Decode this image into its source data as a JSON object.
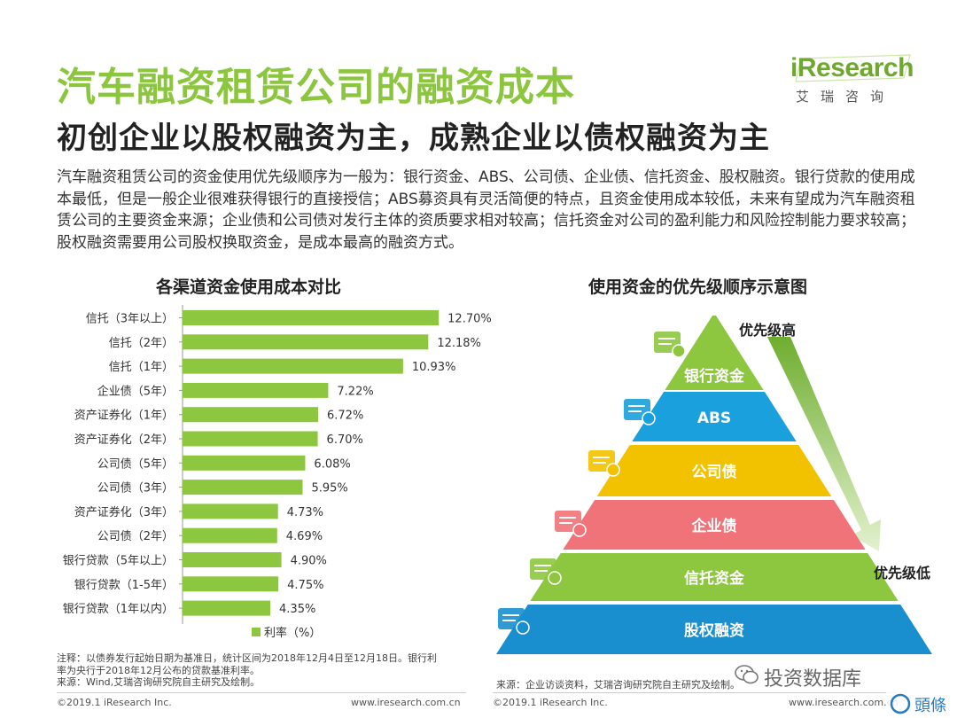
{
  "header": {
    "title": "汽车融资租赁公司的融资成本",
    "subtitle": "初创企业以股权融资为主，成熟企业以债权融资为主"
  },
  "logo": {
    "brand_i": "i",
    "brand_rest": "Research",
    "cn": "艾瑞咨询"
  },
  "intro": "汽车融资租赁公司的资金使用优先级顺序为一般为：银行资金、ABS、公司债、企业债、信托资金、股权融资。银行贷款的使用成本最低，但是一般企业很难获得银行的直接授信；ABS募资具有灵活简便的特点，且资金使用成本较低，未来有望成为汽车融资租赁公司的主要资金来源；企业债和公司债对发行主体的资质要求相对较高；信托资金对公司的盈利能力和风险控制能力要求较高；股权融资需要用公司股权换取资金，是成本最高的融资方式。",
  "left_chart_title": "各渠道资金使用成本对比",
  "right_chart_title": "使用资金的优先级顺序示意图",
  "chart_data": {
    "type": "bar",
    "orientation": "horizontal",
    "categories": [
      "信托（3年以上）",
      "信托（2年）",
      "信托（1年）",
      "企业债（5年）",
      "资产证券化（1年）",
      "资产证券化（2年）",
      "公司债（5年）",
      "公司债（3年）",
      "资产证券化（3年）",
      "公司债（2年）",
      "银行贷款（5年以上）",
      "银行贷款（1-5年）",
      "银行贷款（1年以内）"
    ],
    "values": [
      12.7,
      12.18,
      10.93,
      7.22,
      6.72,
      6.7,
      6.08,
      5.95,
      4.73,
      4.69,
      4.9,
      4.75,
      4.35
    ],
    "value_labels": [
      "12.70%",
      "12.18%",
      "10.93%",
      "7.22%",
      "6.72%",
      "6.70%",
      "6.08%",
      "5.95%",
      "4.73%",
      "4.69%",
      "4.90%",
      "4.75%",
      "4.35%"
    ],
    "series": [
      {
        "name": "利率（%）",
        "values": [
          12.7,
          12.18,
          10.93,
          7.22,
          6.72,
          6.7,
          6.08,
          5.95,
          4.73,
          4.69,
          4.9,
          4.75,
          4.35
        ]
      }
    ],
    "legend_label": "利率（%）",
    "legend_position": "bottom",
    "color": "#8dc63f",
    "grid": false
  },
  "pyramid": {
    "levels": [
      {
        "label": "银行资金",
        "color": "#8dc63f",
        "icon": "document-pen-icon"
      },
      {
        "label": "ABS",
        "color": "#1aa0dc",
        "icon": "money-stack-icon"
      },
      {
        "label": "公司债",
        "color": "#f2c200",
        "icon": "card-icon"
      },
      {
        "label": "企业债",
        "color": "#ef7378",
        "icon": "invoice-icon"
      },
      {
        "label": "信托资金",
        "color": "#8dc63f",
        "icon": "money-bag-icon"
      },
      {
        "label": "股权融资",
        "color": "#1a8fd0",
        "icon": "banknote-icon"
      }
    ],
    "high_label": "优先级高",
    "low_label": "优先级低"
  },
  "notes": {
    "left_line1": "注释：以债券发行起始日期为基准日，统计区间为2018年12月4日至12月18日。银行利",
    "left_line2": "率为央行于2018年12月公布的贷款基准利率。",
    "left_line3": "来源：Wind,艾瑞咨询研究院自主研究及绘制。",
    "right_source": "来源：企业访谈资料，艾瑞咨询研究院自主研究及绘制。"
  },
  "footer": {
    "copyright": "©2019.1 iResearch Inc.",
    "url": "www.iresearch.com.cn"
  },
  "watermark": {
    "text": "投资数据库",
    "badge": "頭條"
  }
}
